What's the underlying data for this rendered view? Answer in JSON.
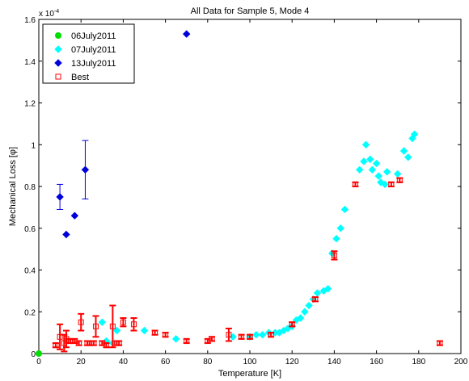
{
  "chart_data": {
    "type": "scatter",
    "title": "All Data for Sample 5, Mode 4",
    "xlabel": "Temperature [K]",
    "ylabel": "Mechanical Loss [φ]",
    "yexponent_label": "x 10",
    "yexponent_power": "-4",
    "xlim": [
      0,
      200
    ],
    "ylim": [
      0,
      1.6
    ],
    "xticks": [
      0,
      20,
      40,
      60,
      80,
      100,
      120,
      140,
      160,
      180,
      200
    ],
    "xtick_labels": [
      "0",
      "20",
      "40",
      "60",
      "80",
      "100",
      "120",
      "140",
      "160",
      "180",
      "200"
    ],
    "yticks": [
      0,
      0.2,
      0.4,
      0.6,
      0.8,
      1.0,
      1.2,
      1.4,
      1.6
    ],
    "ytick_labels": [
      "0",
      "0.2",
      "0.4",
      "0.6",
      "0.8",
      "1",
      "1.2",
      "1.4",
      "1.6"
    ],
    "grid": false,
    "legend_position": "top-left",
    "colors": {
      "06July2011": "#00dd00",
      "07July2011": "#00ffff",
      "13July2011": "#0000dd",
      "Best": "#ff0000"
    },
    "series": [
      {
        "name": "06July2011",
        "marker": "circle",
        "color": "#00dd00",
        "points": [
          [
            0,
            0
          ]
        ]
      },
      {
        "name": "07July2011",
        "marker": "diamond",
        "color": "#00ffff",
        "points": [
          [
            30,
            0.15
          ],
          [
            32,
            0.06
          ],
          [
            35,
            0.05
          ],
          [
            37,
            0.11
          ],
          [
            50,
            0.11
          ],
          [
            65,
            0.07
          ],
          [
            92,
            0.08
          ],
          [
            100,
            0.08
          ],
          [
            103,
            0.09
          ],
          [
            106,
            0.09
          ],
          [
            109,
            0.1
          ],
          [
            112,
            0.1
          ],
          [
            114,
            0.1
          ],
          [
            116,
            0.11
          ],
          [
            118,
            0.12
          ],
          [
            120,
            0.13
          ],
          [
            122,
            0.16
          ],
          [
            124,
            0.17
          ],
          [
            126,
            0.2
          ],
          [
            128,
            0.23
          ],
          [
            130,
            0.26
          ],
          [
            132,
            0.29
          ],
          [
            135,
            0.3
          ],
          [
            137,
            0.31
          ],
          [
            139,
            0.48
          ],
          [
            141,
            0.55
          ],
          [
            143,
            0.6
          ],
          [
            145,
            0.69
          ],
          [
            152,
            0.88
          ],
          [
            154,
            0.92
          ],
          [
            155,
            1.0
          ],
          [
            157,
            0.93
          ],
          [
            158,
            0.88
          ],
          [
            160,
            0.91
          ],
          [
            161,
            0.85
          ],
          [
            162,
            0.82
          ],
          [
            164,
            0.81
          ],
          [
            165,
            0.87
          ],
          [
            170,
            0.86
          ],
          [
            173,
            0.97
          ],
          [
            175,
            0.94
          ],
          [
            177,
            1.03
          ],
          [
            178,
            1.05
          ]
        ]
      },
      {
        "name": "13July2011",
        "marker": "diamond",
        "color": "#0000dd",
        "points": [
          [
            10,
            0.75
          ],
          [
            13,
            0.57
          ],
          [
            17,
            0.66
          ],
          [
            22,
            0.88
          ],
          [
            70,
            1.53
          ]
        ],
        "errors": [
          0.06,
          null,
          null,
          0.14,
          null
        ]
      },
      {
        "name": "Best",
        "marker": "square-open",
        "color": "#ff0000",
        "points": [
          [
            8,
            0.04
          ],
          [
            10,
            0.08
          ],
          [
            12,
            0.05
          ],
          [
            13,
            0.07
          ],
          [
            14,
            0.06
          ],
          [
            15,
            0.06
          ],
          [
            17,
            0.06
          ],
          [
            19,
            0.05
          ],
          [
            20,
            0.15
          ],
          [
            23,
            0.05
          ],
          [
            24,
            0.05
          ],
          [
            26,
            0.05
          ],
          [
            27,
            0.13
          ],
          [
            30,
            0.05
          ],
          [
            32,
            0.04
          ],
          [
            35,
            0.13
          ],
          [
            37,
            0.05
          ],
          [
            38,
            0.05
          ],
          [
            40,
            0.15
          ],
          [
            45,
            0.14
          ],
          [
            55,
            0.1
          ],
          [
            60,
            0.09
          ],
          [
            70,
            0.06
          ],
          [
            80,
            0.06
          ],
          [
            82,
            0.07
          ],
          [
            90,
            0.09
          ],
          [
            96,
            0.08
          ],
          [
            100,
            0.08
          ],
          [
            110,
            0.09
          ],
          [
            120,
            0.14
          ],
          [
            131,
            0.26
          ],
          [
            140,
            0.47
          ],
          [
            150,
            0.81
          ],
          [
            167,
            0.81
          ],
          [
            171,
            0.83
          ],
          [
            190,
            0.05
          ]
        ],
        "errors": [
          0.01,
          0.06,
          0.04,
          0.04,
          0.01,
          0.01,
          0.01,
          0.01,
          0.04,
          0.01,
          0.01,
          0.01,
          0.05,
          0.01,
          0.01,
          0.1,
          0.01,
          0.01,
          0.02,
          0.03,
          0.01,
          0.01,
          0.01,
          0.01,
          0.01,
          0.03,
          0.01,
          0.01,
          0.01,
          0.01,
          0.01,
          0.02,
          0.01,
          0.01,
          0.01,
          0.01
        ]
      }
    ]
  }
}
